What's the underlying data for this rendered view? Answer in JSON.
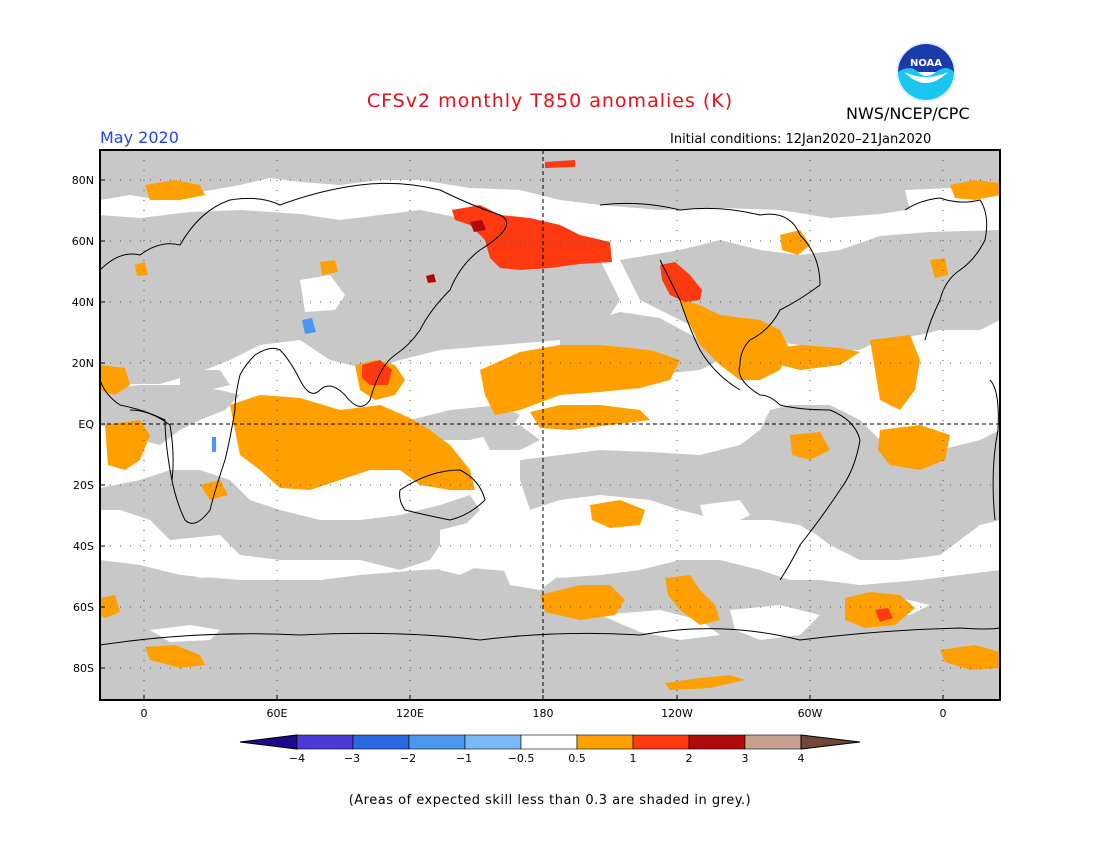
{
  "title": "CFSv2 monthly T850 anomalies (K)",
  "valid_period": "May 2020",
  "initial_conditions": "Initial conditions: 12Jan2020–21Jan2020",
  "agency": "NWS/NCEP/CPC",
  "logo": {
    "text": "NOAA",
    "icon": "noaa-logo-icon"
  },
  "footnote": "(Areas of expected skill less than 0.3 are shaded in grey.)",
  "latitude_labels": [
    "80N",
    "60N",
    "40N",
    "20N",
    "EQ",
    "20S",
    "40S",
    "60S",
    "80S"
  ],
  "longitude_labels": [
    "0",
    "60E",
    "120E",
    "180",
    "120W",
    "60W",
    "0"
  ],
  "colorbar": {
    "labels": [
      "−4",
      "−3",
      "−2",
      "−1",
      "−0.5",
      "0.5",
      "1",
      "2",
      "3",
      "4"
    ],
    "colors": [
      "#1a0a8c",
      "#4a3ad6",
      "#2a6ae0",
      "#4a96f0",
      "#7ab8f8",
      "#ffffff",
      "#ffa000",
      "#ff3a10",
      "#b00a0a",
      "#c8a090",
      "#704838"
    ]
  },
  "colors": {
    "low_skill_grey": "#c8c8c8",
    "near_normal": "#ffffff",
    "warm_05_1": "#ffa000",
    "warm_1_2": "#ff3a10",
    "warm_2_3": "#b00a0a",
    "cool_05_1": "#4a96f0",
    "title_red": "#e8101a",
    "period_blue": "#2244ee"
  }
}
